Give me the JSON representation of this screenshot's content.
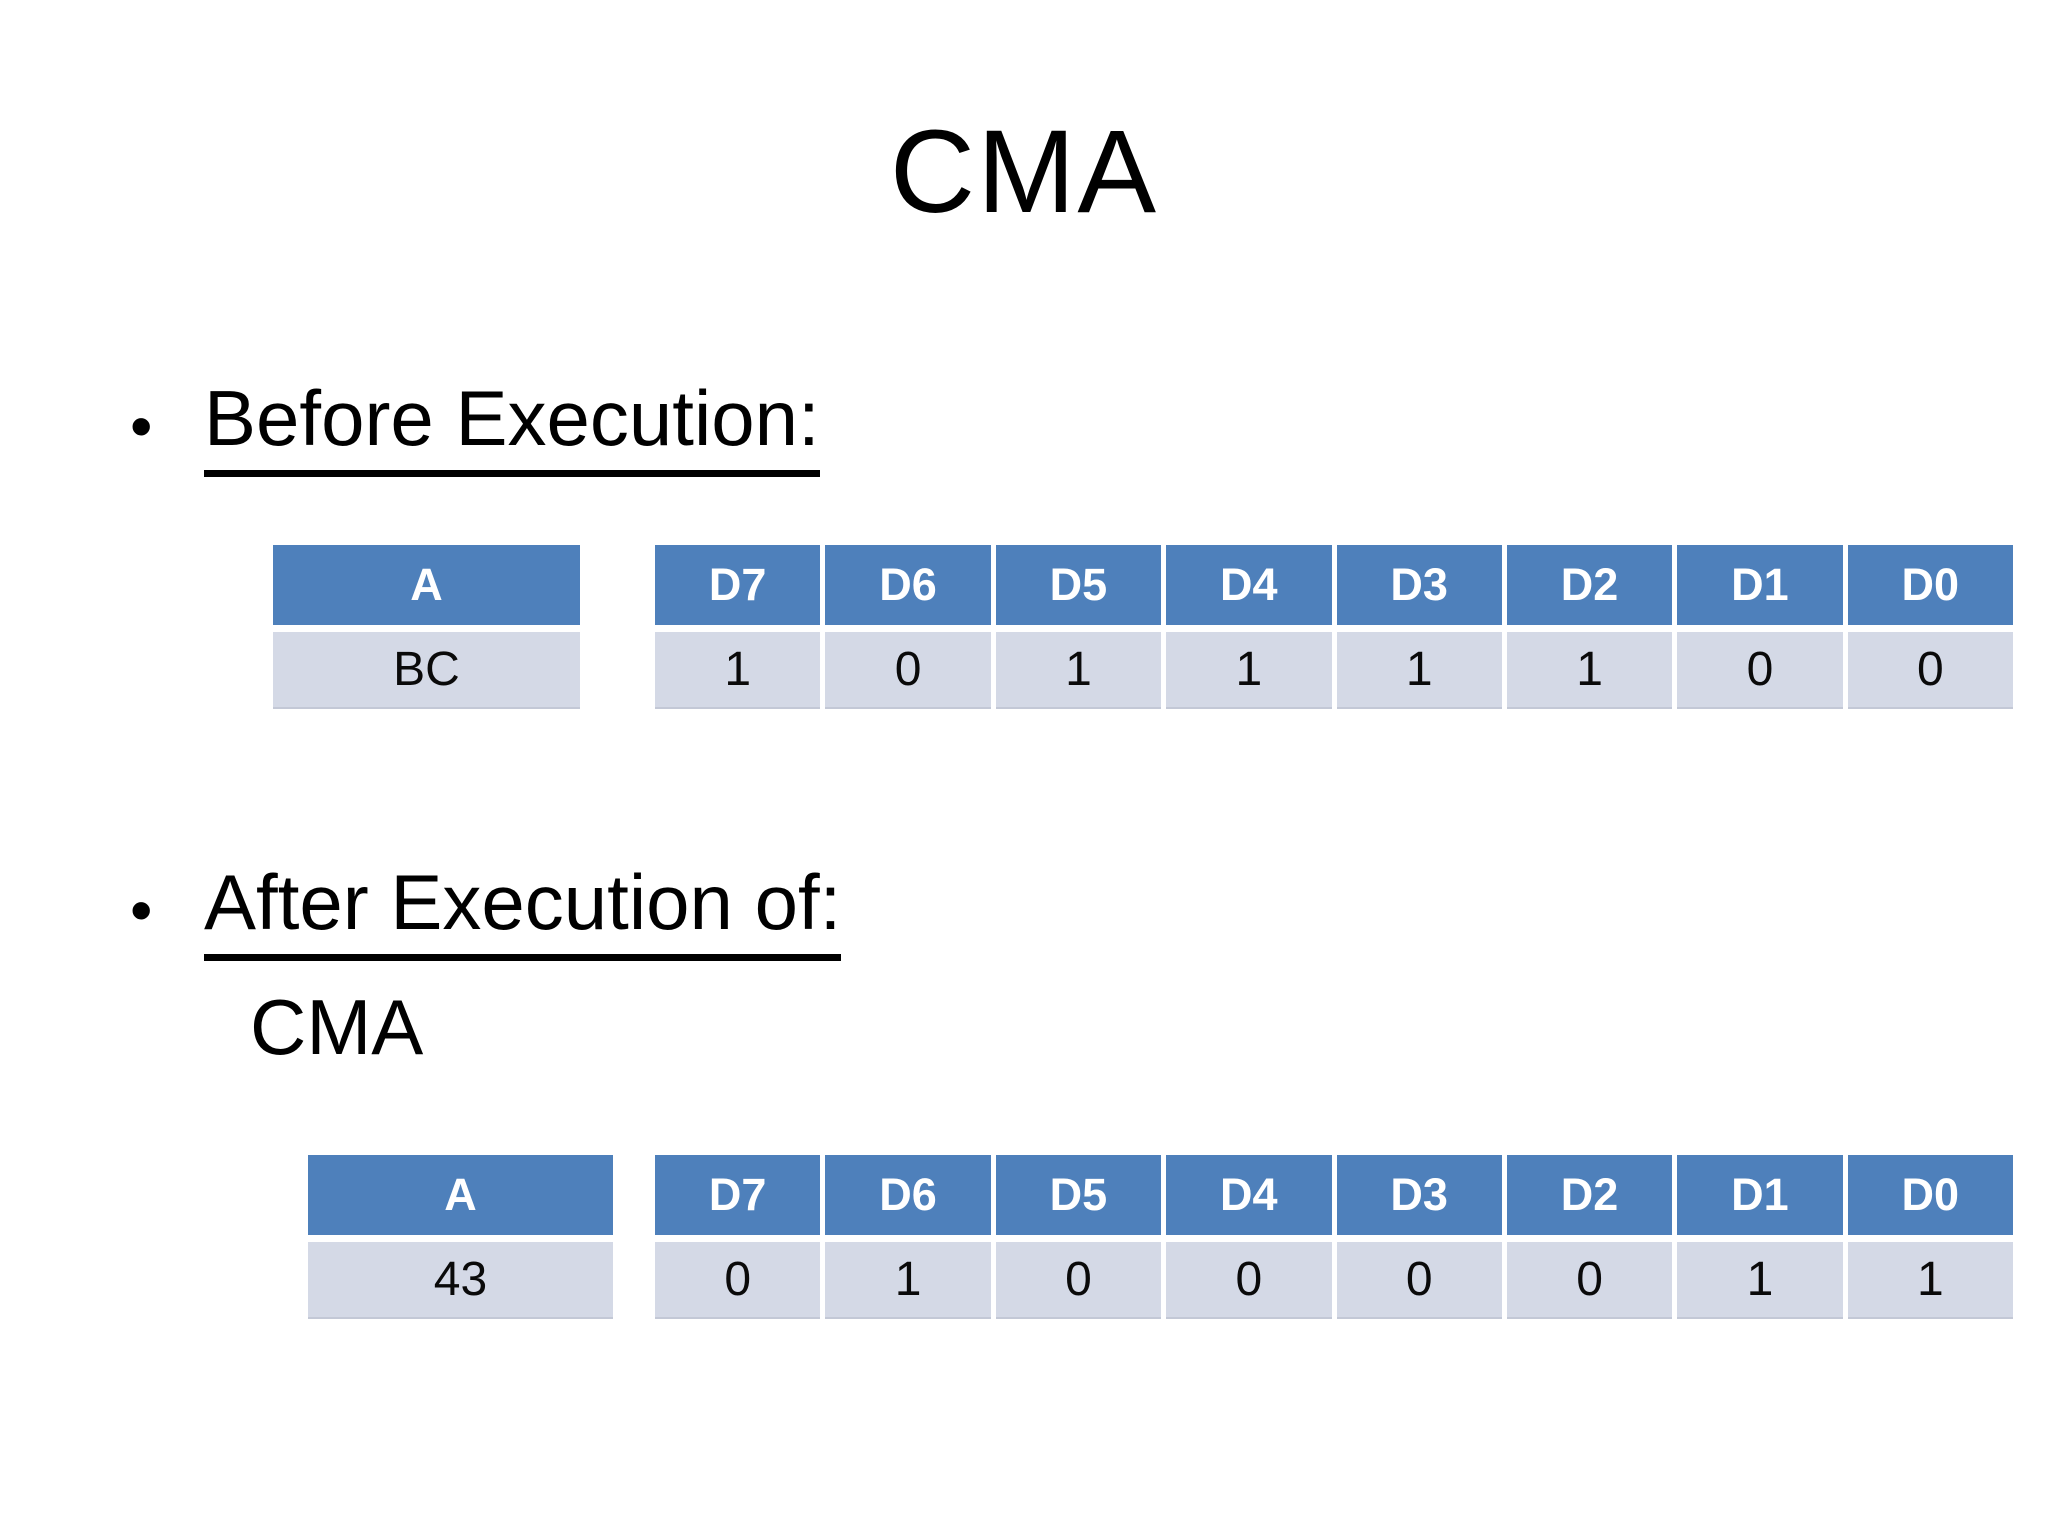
{
  "slide": {
    "title": "CMA",
    "bullet_marker": "•",
    "sections": {
      "before": {
        "heading": "Before Execution:"
      },
      "after": {
        "heading": "After Execution of:",
        "instruction": "CMA"
      }
    }
  },
  "colors": {
    "header_bg": "#4E80BB",
    "row_bg": "#D4D9E6",
    "header_text": "#FFFFFF",
    "body_text": "#000000"
  },
  "before": {
    "register": {
      "header": "A",
      "value": "BC"
    },
    "bits": {
      "headers": [
        "D7",
        "D6",
        "D5",
        "D4",
        "D3",
        "D2",
        "D1",
        "D0"
      ],
      "values": [
        "1",
        "0",
        "1",
        "1",
        "1",
        "1",
        "0",
        "0"
      ]
    }
  },
  "after": {
    "register": {
      "header": "A",
      "value": "43"
    },
    "bits": {
      "headers": [
        "D7",
        "D6",
        "D5",
        "D4",
        "D3",
        "D2",
        "D1",
        "D0"
      ],
      "values": [
        "0",
        "1",
        "0",
        "0",
        "0",
        "0",
        "1",
        "1"
      ]
    }
  }
}
